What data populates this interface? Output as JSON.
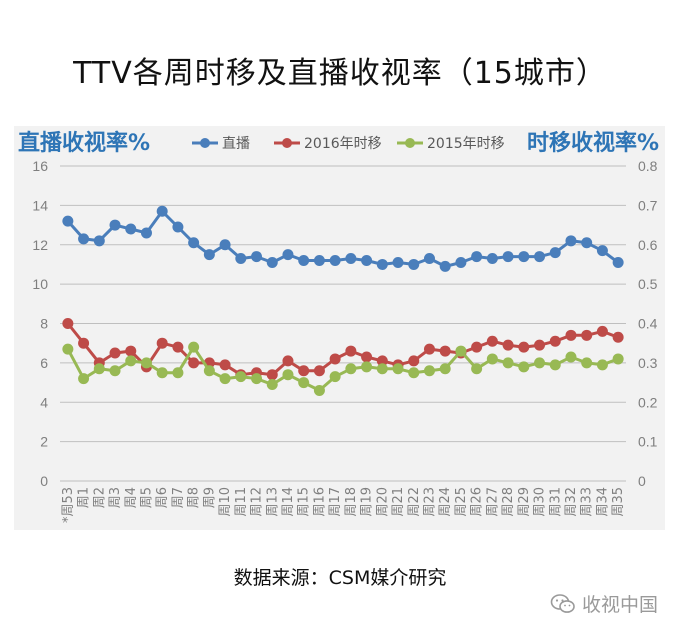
{
  "title": "TTV各周时移及直播收视率（15城市）",
  "source": "数据来源：CSM媒介研究",
  "watermark": "收视中国",
  "watermark_icon": "wechat-icon",
  "colors": {
    "live": "#4a7ebb",
    "ts2016": "#be4b48",
    "ts2015": "#98b954",
    "panel_bg": "#f2f2f2",
    "axis_title": "#2e75b6",
    "tick": "#7f7f7f",
    "grid": "#bfbfbf"
  },
  "chart_data": {
    "type": "line",
    "left_axis_title": "直播收视率%",
    "right_axis_title": "时移收视率%",
    "legend_position": "top",
    "grid": true,
    "y_left_range": [
      0,
      16
    ],
    "y_left_ticks": [
      "0",
      "2",
      "4",
      "6",
      "8",
      "10",
      "12",
      "14",
      "16"
    ],
    "y_right_range": [
      0,
      0.8
    ],
    "y_right_ticks": [
      "0",
      "0.1",
      "0.2",
      "0.3",
      "0.4",
      "0.5",
      "0.6",
      "0.7",
      "0.8"
    ],
    "categories": [
      "*周53",
      "周1",
      "周2",
      "周3",
      "周4",
      "周5",
      "周6",
      "周7",
      "周8",
      "周9",
      "周10",
      "周11",
      "周12",
      "周13",
      "周14",
      "周15",
      "周16",
      "周17",
      "周18",
      "周19",
      "周20",
      "周21",
      "周22",
      "周23",
      "周24",
      "周25",
      "周26",
      "周27",
      "周28",
      "周29",
      "周30",
      "周31",
      "周32",
      "周33",
      "周34",
      "周35"
    ],
    "series": [
      {
        "name": "直播",
        "axis": "left",
        "color": "#4a7ebb",
        "values": [
          13.2,
          12.3,
          12.2,
          13.0,
          12.8,
          12.6,
          13.7,
          12.9,
          12.1,
          11.5,
          12.0,
          11.3,
          11.4,
          11.1,
          11.5,
          11.2,
          11.2,
          11.2,
          11.3,
          11.2,
          11.0,
          11.1,
          11.0,
          11.3,
          10.9,
          11.1,
          11.4,
          11.3,
          11.4,
          11.4,
          11.4,
          11.6,
          12.2,
          12.1,
          11.7,
          11.1
        ]
      },
      {
        "name": "2016年时移",
        "axis": "right",
        "color": "#be4b48",
        "values": [
          0.4,
          0.35,
          0.3,
          0.325,
          0.33,
          0.29,
          0.35,
          0.34,
          0.3,
          0.3,
          0.295,
          0.27,
          0.275,
          0.27,
          0.305,
          0.28,
          0.28,
          0.31,
          0.33,
          0.315,
          0.305,
          0.295,
          0.305,
          0.335,
          0.33,
          0.325,
          0.34,
          0.355,
          0.345,
          0.34,
          0.345,
          0.355,
          0.37,
          0.37,
          0.38,
          0.365
        ]
      },
      {
        "name": "2015年时移",
        "axis": "right",
        "color": "#98b954",
        "values": [
          0.335,
          0.26,
          0.285,
          0.28,
          0.305,
          0.3,
          0.275,
          0.275,
          0.34,
          0.28,
          0.26,
          0.265,
          0.26,
          0.245,
          0.27,
          0.25,
          0.23,
          0.265,
          0.285,
          0.29,
          0.285,
          0.285,
          0.275,
          0.28,
          0.285,
          0.33,
          0.285,
          0.31,
          0.3,
          0.29,
          0.3,
          0.295,
          0.315,
          0.3,
          0.295,
          0.31
        ]
      }
    ]
  }
}
